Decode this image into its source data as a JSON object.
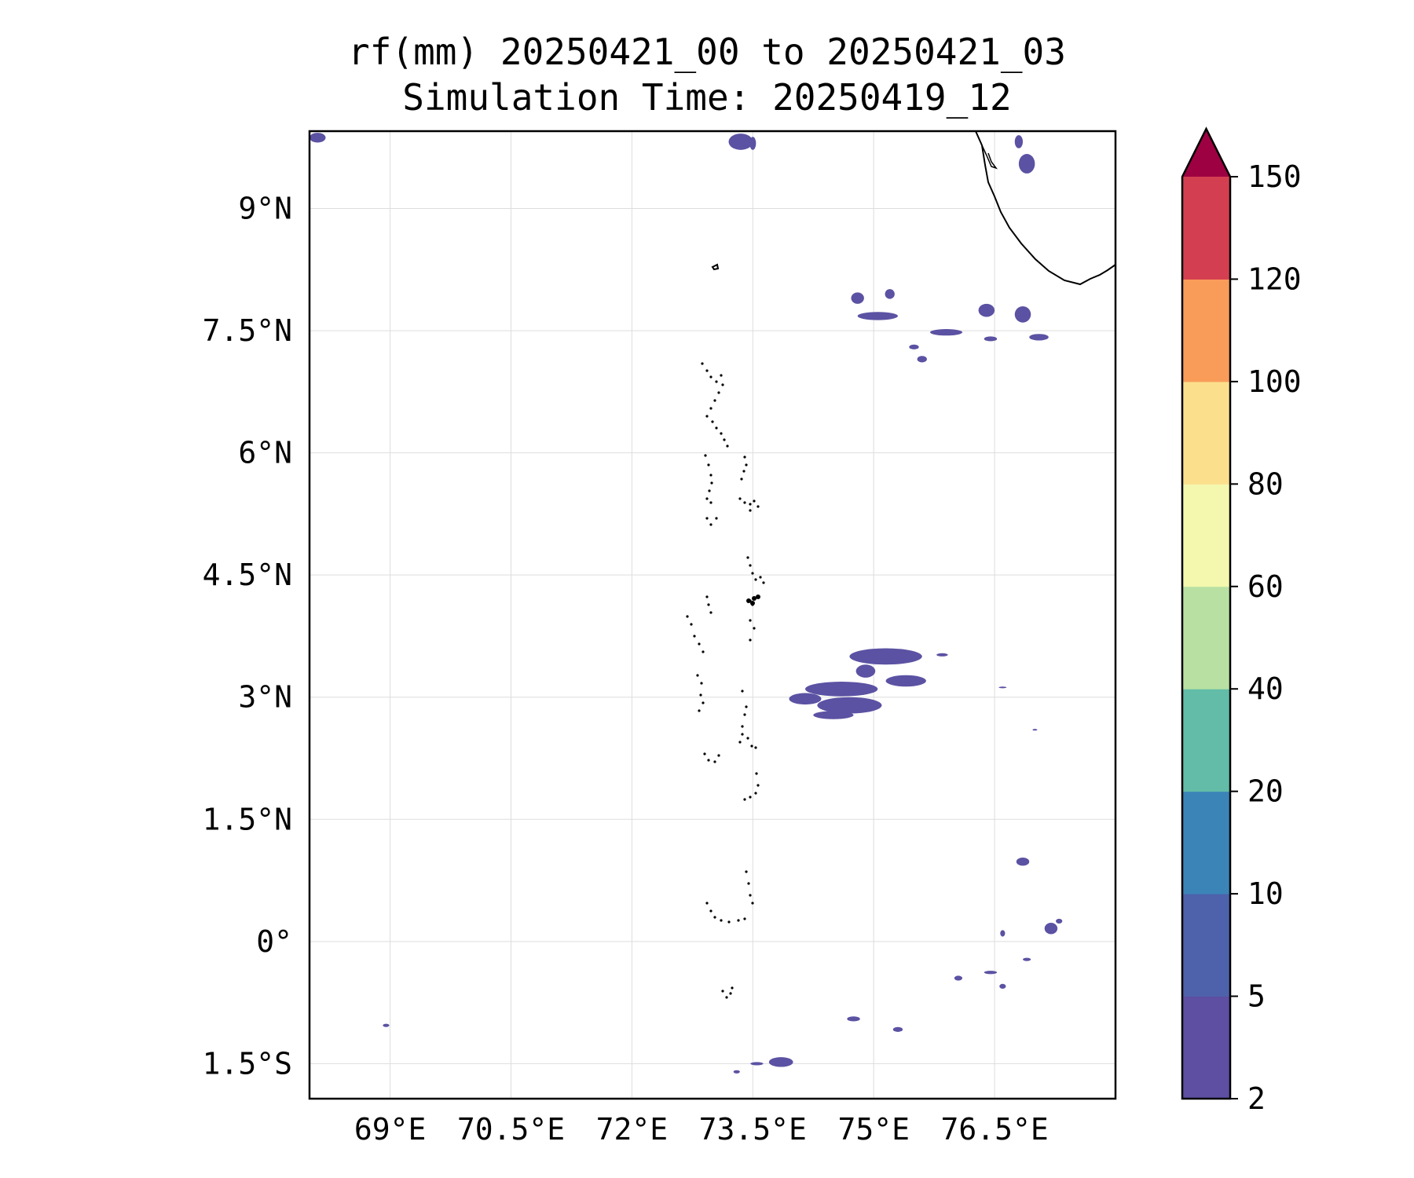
{
  "title": {
    "line1": "rf(mm) 20250421_00 to 20250421_03",
    "line2": "Simulation Time: 20250419_12"
  },
  "map": {
    "lon_range": [
      68.0,
      78.0
    ],
    "lat_range": [
      -1.93,
      9.95
    ],
    "lon_ticks": [
      {
        "value": 69.0,
        "label": "69°E"
      },
      {
        "value": 70.5,
        "label": "70.5°E"
      },
      {
        "value": 72.0,
        "label": "72°E"
      },
      {
        "value": 73.5,
        "label": "73.5°E"
      },
      {
        "value": 75.0,
        "label": "75°E"
      },
      {
        "value": 76.5,
        "label": "76.5°E"
      }
    ],
    "lat_ticks": [
      {
        "value": 9.0,
        "label": "9°N"
      },
      {
        "value": 7.5,
        "label": "7.5°N"
      },
      {
        "value": 6.0,
        "label": "6°N"
      },
      {
        "value": 4.5,
        "label": "4.5°N"
      },
      {
        "value": 3.0,
        "label": "3°N"
      },
      {
        "value": 1.5,
        "label": "1.5°N"
      },
      {
        "value": 0.0,
        "label": "0°"
      },
      {
        "value": -1.5,
        "label": "1.5°S"
      }
    ],
    "gridlines": true,
    "rain_color": "#5b52a3",
    "coast_color": "#000000",
    "rain_areas": [
      {
        "lon": 73.35,
        "lat": 9.82,
        "rlon": 0.15,
        "rlat": 0.1
      },
      {
        "lon": 73.5,
        "lat": 9.8,
        "rlon": 0.04,
        "rlat": 0.08
      },
      {
        "lon": 68.1,
        "lat": 9.87,
        "rlon": 0.1,
        "rlat": 0.06
      },
      {
        "lon": 76.8,
        "lat": 9.82,
        "rlon": 0.05,
        "rlat": 0.08
      },
      {
        "lon": 76.9,
        "lat": 9.55,
        "rlon": 0.1,
        "rlat": 0.12
      },
      {
        "lon": 74.8,
        "lat": 7.9,
        "rlon": 0.08,
        "rlat": 0.07
      },
      {
        "lon": 75.05,
        "lat": 7.68,
        "rlon": 0.25,
        "rlat": 0.05
      },
      {
        "lon": 75.2,
        "lat": 7.95,
        "rlon": 0.06,
        "rlat": 0.06
      },
      {
        "lon": 75.9,
        "lat": 7.48,
        "rlon": 0.2,
        "rlat": 0.04
      },
      {
        "lon": 76.4,
        "lat": 7.75,
        "rlon": 0.1,
        "rlat": 0.08
      },
      {
        "lon": 76.85,
        "lat": 7.7,
        "rlon": 0.1,
        "rlat": 0.1
      },
      {
        "lon": 77.05,
        "lat": 7.42,
        "rlon": 0.12,
        "rlat": 0.04
      },
      {
        "lon": 76.45,
        "lat": 7.4,
        "rlon": 0.08,
        "rlat": 0.03
      },
      {
        "lon": 75.5,
        "lat": 7.3,
        "rlon": 0.06,
        "rlat": 0.03
      },
      {
        "lon": 75.6,
        "lat": 7.15,
        "rlon": 0.06,
        "rlat": 0.04
      },
      {
        "lon": 74.9,
        "lat": 3.32,
        "rlon": 0.12,
        "rlat": 0.08
      },
      {
        "lon": 75.15,
        "lat": 3.5,
        "rlon": 0.45,
        "rlat": 0.1
      },
      {
        "lon": 74.6,
        "lat": 3.1,
        "rlon": 0.45,
        "rlat": 0.09
      },
      {
        "lon": 74.15,
        "lat": 2.98,
        "rlon": 0.2,
        "rlat": 0.07
      },
      {
        "lon": 74.7,
        "lat": 2.9,
        "rlon": 0.4,
        "rlat": 0.1
      },
      {
        "lon": 74.5,
        "lat": 2.78,
        "rlon": 0.25,
        "rlat": 0.05
      },
      {
        "lon": 75.4,
        "lat": 3.2,
        "rlon": 0.25,
        "rlat": 0.07
      },
      {
        "lon": 75.85,
        "lat": 3.52,
        "rlon": 0.07,
        "rlat": 0.02
      },
      {
        "lon": 76.85,
        "lat": 0.98,
        "rlon": 0.08,
        "rlat": 0.05
      },
      {
        "lon": 77.2,
        "lat": 0.16,
        "rlon": 0.08,
        "rlat": 0.07
      },
      {
        "lon": 77.3,
        "lat": 0.25,
        "rlon": 0.04,
        "rlat": 0.03
      },
      {
        "lon": 76.45,
        "lat": -0.38,
        "rlon": 0.08,
        "rlat": 0.02
      },
      {
        "lon": 76.05,
        "lat": -0.45,
        "rlon": 0.05,
        "rlat": 0.03
      },
      {
        "lon": 74.75,
        "lat": -0.95,
        "rlon": 0.08,
        "rlat": 0.03
      },
      {
        "lon": 75.3,
        "lat": -1.08,
        "rlon": 0.06,
        "rlat": 0.03
      },
      {
        "lon": 73.85,
        "lat": -1.48,
        "rlon": 0.15,
        "rlat": 0.06
      },
      {
        "lon": 73.55,
        "lat": -1.5,
        "rlon": 0.08,
        "rlat": 0.02
      },
      {
        "lon": 73.3,
        "lat": -1.6,
        "rlon": 0.04,
        "rlat": 0.02
      },
      {
        "lon": 68.95,
        "lat": -1.03,
        "rlon": 0.04,
        "rlat": 0.02
      },
      {
        "lon": 76.6,
        "lat": 0.1,
        "rlon": 0.03,
        "rlat": 0.04
      },
      {
        "lon": 76.9,
        "lat": -0.22,
        "rlon": 0.05,
        "rlat": 0.02
      },
      {
        "lon": 76.6,
        "lat": -0.55,
        "rlon": 0.04,
        "rlat": 0.03
      },
      {
        "lon": 76.6,
        "lat": 3.12,
        "rlon": 0.05,
        "rlat": 0.01
      },
      {
        "lon": 77.0,
        "lat": 2.6,
        "rlon": 0.03,
        "rlat": 0.01
      }
    ]
  },
  "colorbar": {
    "levels": [
      2,
      5,
      10,
      20,
      40,
      60,
      80,
      100,
      120,
      150
    ],
    "labels": [
      "2",
      "5",
      "10",
      "20",
      "40",
      "60",
      "80",
      "100",
      "120",
      "150"
    ],
    "colors": [
      "#5e4fa2",
      "#4e61ab",
      "#3b84b8",
      "#62bca8",
      "#b8e0a2",
      "#f3f8ae",
      "#fbdf8d",
      "#f99c5a",
      "#d33f50"
    ],
    "extend_color": "#9e0142"
  }
}
